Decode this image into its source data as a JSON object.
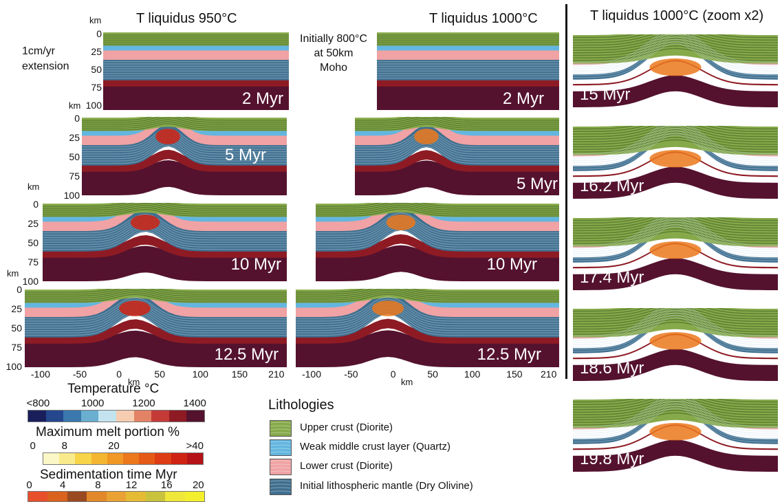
{
  "headers": {
    "left": "T liquidus 950°C",
    "middle": "T liquidus 1000°C",
    "right": "T liquidus 1000°C (zoom x2)"
  },
  "annotations": {
    "extension_line1": "1cm/yr",
    "extension_line2": "extension",
    "initial_line1": "Initially 800°C",
    "initial_line2": "at 50km",
    "initial_line3": "Moho"
  },
  "depth_axis": {
    "unit": "km",
    "ticks": [
      "0",
      "25",
      "50",
      "75",
      "100"
    ]
  },
  "distance_axis": {
    "unit": "km",
    "ticks": [
      "-100",
      "-50",
      "0",
      "50",
      "100",
      "150",
      "210"
    ]
  },
  "panels": {
    "left": [
      "2 Myr",
      "5 Myr",
      "10 Myr",
      "12.5 Myr"
    ],
    "middle": [
      "2 Myr",
      "5 Myr",
      "10 Myr",
      "12.5 Myr"
    ],
    "zoom": [
      "15 Myr",
      "16.2 Myr",
      "17.4 Myr",
      "18.6 Myr",
      "19.8 Myr"
    ]
  },
  "temperature_scale": {
    "title": "Temperature °C",
    "ticks": [
      "<800",
      "1000",
      "1200",
      "1400"
    ],
    "colors": [
      "#1a1f5c",
      "#24478e",
      "#3b78ad",
      "#6aaed0",
      "#c3e4ef",
      "#f6cdb0",
      "#e38264",
      "#c43a36",
      "#8e1b24",
      "#54122e"
    ]
  },
  "melt_scale": {
    "title": "Maximum melt portion %",
    "ticks": [
      "0",
      "8",
      "20",
      ">40"
    ],
    "colors": [
      "#fbf7c6",
      "#f9ea8c",
      "#f7d448",
      "#f4b531",
      "#f09725",
      "#eb781c",
      "#e55a17",
      "#de3c14",
      "#cf2313",
      "#b51318"
    ]
  },
  "sedimentation_scale": {
    "title": "Sedimentation time Myr",
    "ticks": [
      "0",
      "4",
      "8",
      "12",
      "16",
      "20"
    ],
    "colors": [
      "#e8502c",
      "#d9621e",
      "#9a4a20",
      "#e2882a",
      "#e9a233",
      "#e6bb34",
      "#c9c23d",
      "#efe73a",
      "#f4ef2e"
    ]
  },
  "legend": {
    "title": "Lithologies",
    "items": [
      {
        "label": "Upper crust (Diorite)",
        "color": "#86a94a"
      },
      {
        "label": "Weak middle crust layer (Quartz)",
        "color": "#63b6e0"
      },
      {
        "label": "Lower crust (Diorite)",
        "color": "#f0a2a4"
      },
      {
        "label": "Initial lithospheric mantle (Dry Olivine)",
        "color": "#3f6f8f"
      }
    ]
  }
}
